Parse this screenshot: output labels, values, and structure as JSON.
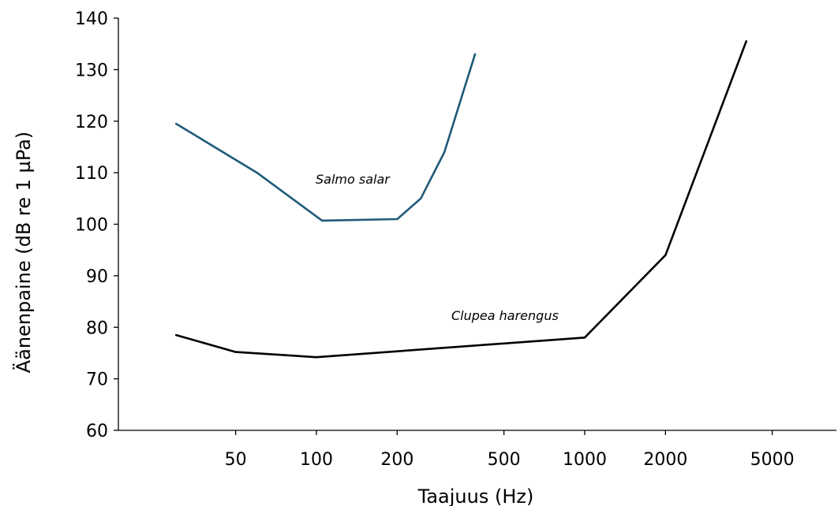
{
  "chart_data": {
    "type": "line",
    "xlabel": "Taajuus (Hz)",
    "ylabel": "Äänenpaine (dB re 1 µPa)",
    "xscale": "log",
    "ylim": [
      60,
      140
    ],
    "y_ticks": [
      60,
      70,
      80,
      90,
      100,
      110,
      120,
      130,
      140
    ],
    "x_ticks": [
      50,
      100,
      200,
      500,
      1000,
      2000,
      5000
    ],
    "x_tick_labels": [
      "50",
      "100",
      "200",
      "500",
      "1000",
      "2000",
      "5000"
    ],
    "grid": false,
    "series": [
      {
        "name": "Salmo salar",
        "color": "#1f5a7a",
        "x": [
          30,
          60,
          105,
          200,
          245,
          300,
          390
        ],
        "y": [
          119.5,
          110,
          100.7,
          101,
          105,
          114,
          133
        ]
      },
      {
        "name": "Clupea harengus",
        "color": "#000000",
        "x": [
          30,
          50,
          100,
          1000,
          2000,
          4000
        ],
        "y": [
          78.5,
          75.2,
          74.2,
          78,
          94,
          135.5
        ]
      }
    ]
  }
}
